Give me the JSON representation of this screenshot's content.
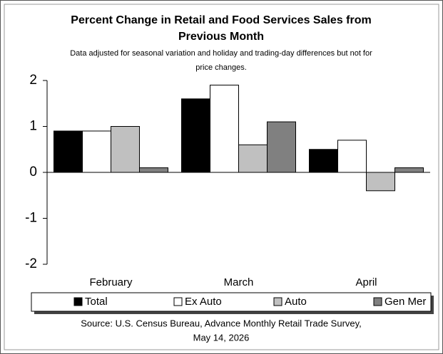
{
  "chart_data": {
    "type": "bar",
    "title": [
      "Percent Change in Retail and Food Services Sales from",
      "Previous Month"
    ],
    "subtitle": [
      "Data adjusted for seasonal variation and holiday and trading-day differences but not for",
      "price changes."
    ],
    "categories": [
      "February",
      "March",
      "April"
    ],
    "series": [
      {
        "name": "Total",
        "color": "#000000",
        "values": [
          0.9,
          1.6,
          0.5
        ]
      },
      {
        "name": "Ex Auto",
        "color": "#ffffff",
        "values": [
          0.9,
          1.9,
          0.7
        ]
      },
      {
        "name": "Auto",
        "color": "#c0c0c0",
        "values": [
          1.0,
          0.6,
          -0.4
        ]
      },
      {
        "name": "Gen Mer",
        "color": "#808080",
        "values": [
          0.1,
          1.1,
          0.1
        ]
      }
    ],
    "ylim": [
      -2,
      2
    ],
    "yticks": [
      2,
      1,
      0,
      -1,
      -2
    ],
    "source": [
      "Source: U.S. Census Bureau, Advance Monthly Retail Trade Survey,",
      "May 14, 2026"
    ]
  }
}
